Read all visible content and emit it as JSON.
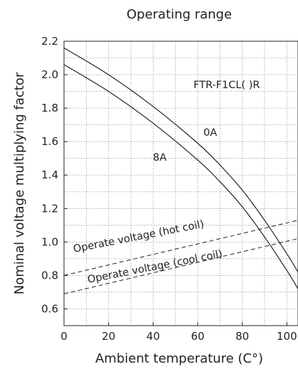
{
  "chart_data": {
    "type": "line",
    "title": "Operating range",
    "xlabel": "Ambient temperature (C°)",
    "ylabel": "Nominal voltage multiplying factor",
    "xlim": [
      0,
      105
    ],
    "ylim": [
      0.5,
      2.2
    ],
    "x_ticks": [
      "0",
      "20",
      "40",
      "60",
      "80",
      "100"
    ],
    "y_ticks": [
      "0.6",
      "0.8",
      "1.0",
      "1.2",
      "1.4",
      "1.6",
      "1.8",
      "2.0",
      "2.2"
    ],
    "grid": true,
    "model_label": "FTR-F1CL( )R",
    "series": [
      {
        "name": "0A",
        "style": "solid",
        "x": [
          0,
          20,
          40,
          60,
          70,
          80,
          90,
          100,
          105
        ],
        "y": [
          2.16,
          2.0,
          1.81,
          1.59,
          1.46,
          1.31,
          1.13,
          0.93,
          0.82
        ]
      },
      {
        "name": "8A",
        "style": "solid",
        "x": [
          0,
          20,
          40,
          60,
          70,
          80,
          90,
          100,
          105
        ],
        "y": [
          2.06,
          1.9,
          1.71,
          1.49,
          1.36,
          1.21,
          1.03,
          0.83,
          0.72
        ]
      },
      {
        "name": "Operate voltage (hot coil)",
        "style": "dashed",
        "x": [
          0,
          105
        ],
        "y": [
          0.8,
          1.13
        ]
      },
      {
        "name": "Operate voltage (cool coil)",
        "style": "dashed",
        "x": [
          0,
          105
        ],
        "y": [
          0.69,
          1.02
        ]
      }
    ]
  }
}
